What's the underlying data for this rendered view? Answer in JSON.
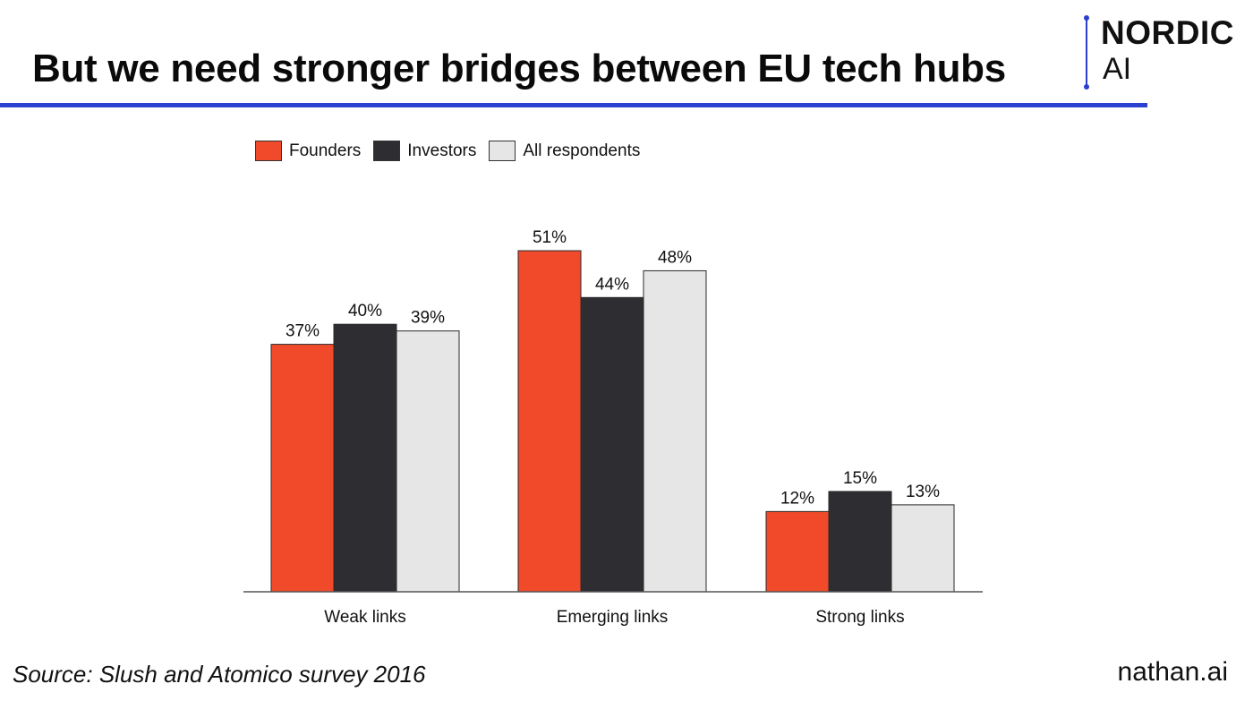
{
  "title": "But we need stronger bridges between EU tech hubs",
  "logo": {
    "line1": "NORDIC",
    "line2": "AI"
  },
  "footer": {
    "source": "Source: Slush and Atomico survey 2016",
    "site": "nathan.ai"
  },
  "colors": {
    "accent": "#2b3fd0",
    "founders": "#f04a2b",
    "investors": "#2e2d31",
    "all_respondents": "#e6e6e6"
  },
  "chart_data": {
    "type": "bar",
    "title": "",
    "xlabel": "",
    "ylabel": "",
    "categories": [
      "Weak links",
      "Emerging links",
      "Strong links"
    ],
    "series": [
      {
        "name": "Founders",
        "values": [
          37,
          51,
          12
        ],
        "labels": [
          "37%",
          "51%",
          "12%"
        ],
        "color": "#f04a2b"
      },
      {
        "name": "Investors",
        "values": [
          40,
          44,
          15
        ],
        "labels": [
          "40%",
          "44%",
          "15%"
        ],
        "color": "#2e2d31"
      },
      {
        "name": "All respondents",
        "values": [
          39,
          48,
          13
        ],
        "labels": [
          "39%",
          "48%",
          "13%"
        ],
        "color": "#e6e6e6"
      }
    ],
    "ylim": [
      0,
      51
    ],
    "grid": false,
    "legend_position": "top-left"
  }
}
